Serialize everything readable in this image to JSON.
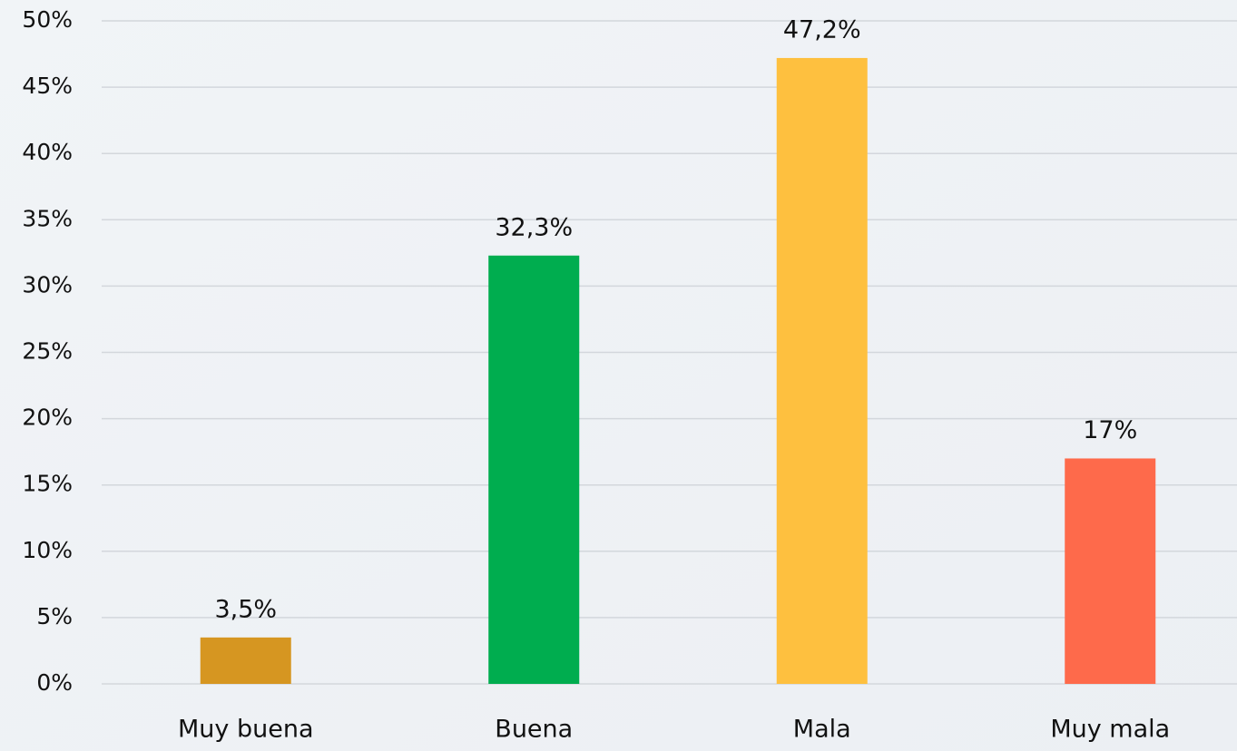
{
  "chart_data": {
    "type": "bar",
    "categories": [
      "Muy buena",
      "Buena",
      "Mala",
      "Muy mala"
    ],
    "values": [
      3.5,
      32.3,
      47.2,
      17
    ],
    "value_labels": [
      "3,5%",
      "32,3%",
      "47,2%",
      "17%"
    ],
    "colors": [
      "#d69621",
      "#00ad4f",
      "#fec03f",
      "#fe6a4b"
    ],
    "ylim": [
      0,
      50
    ],
    "yticks": [
      {
        "value": 0,
        "label": "0%"
      },
      {
        "value": 5,
        "label": "5%"
      },
      {
        "value": 10,
        "label": "10%"
      },
      {
        "value": 15,
        "label": "15%"
      },
      {
        "value": 20,
        "label": "20%"
      },
      {
        "value": 25,
        "label": "25%"
      },
      {
        "value": 30,
        "label": "30%"
      },
      {
        "value": 35,
        "label": "35%"
      },
      {
        "value": 40,
        "label": "40%"
      },
      {
        "value": 45,
        "label": "45%"
      },
      {
        "value": 50,
        "label": "50%"
      }
    ],
    "grid": true
  }
}
